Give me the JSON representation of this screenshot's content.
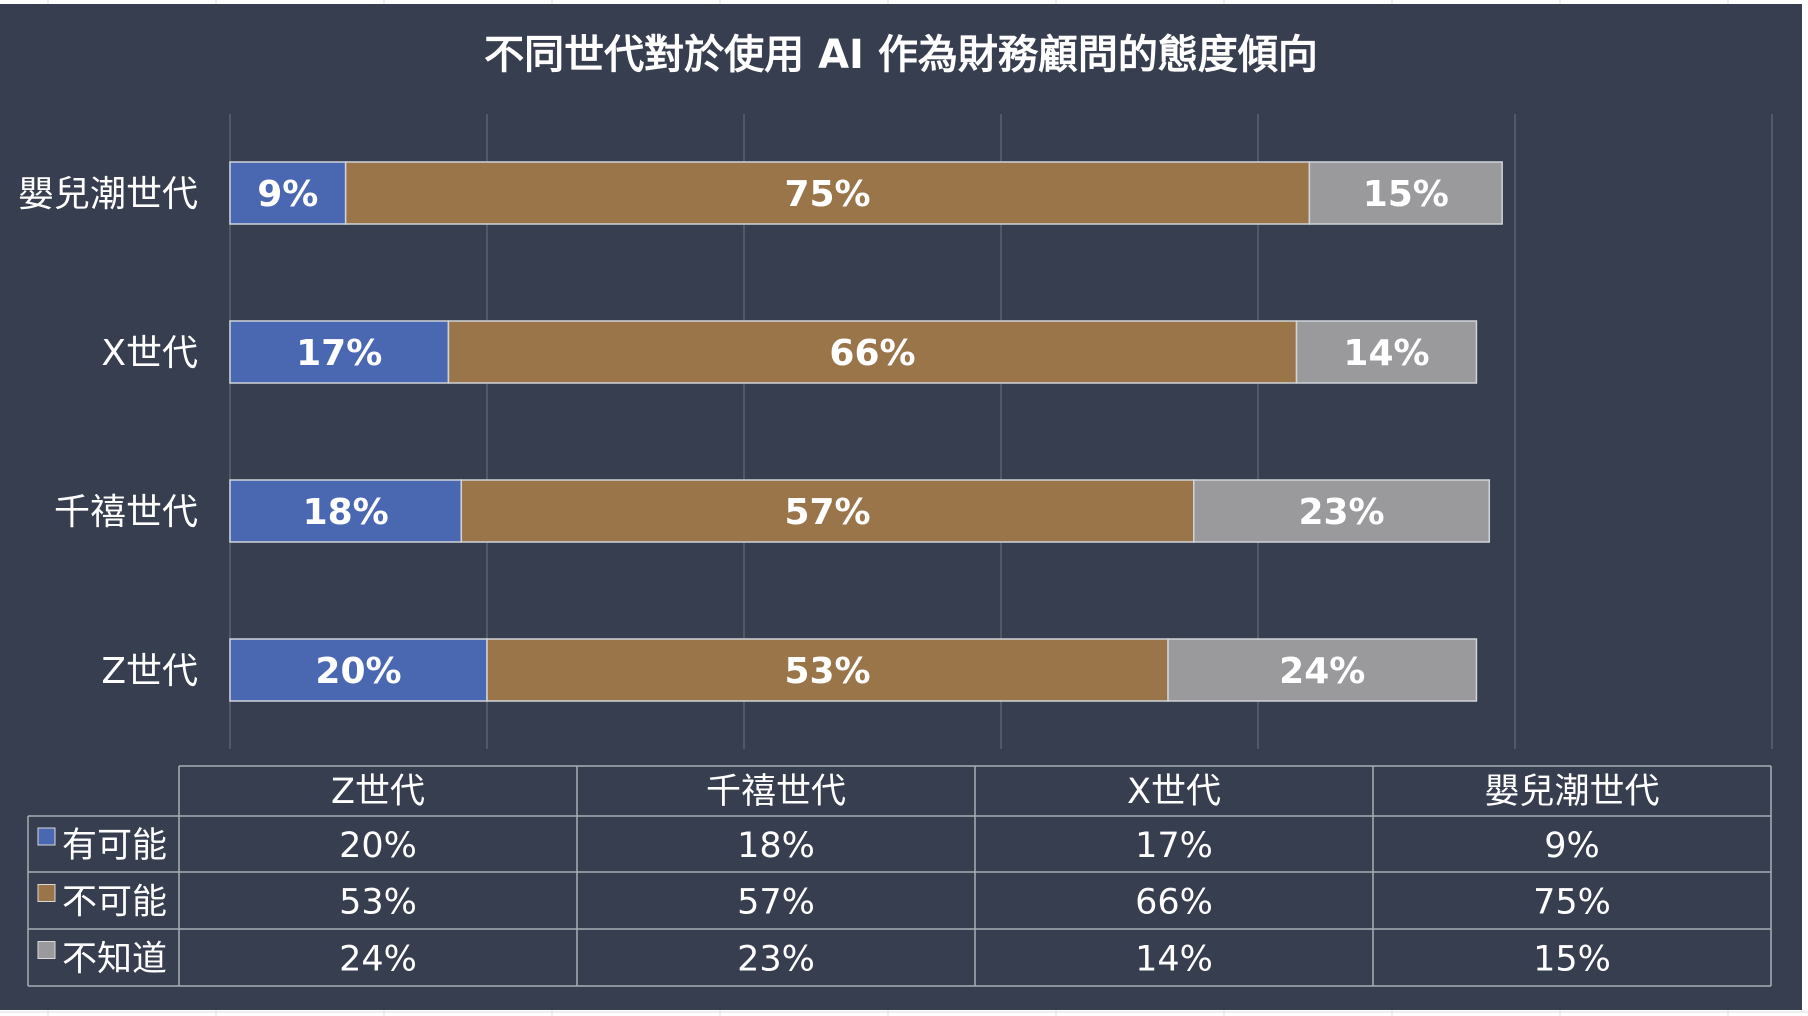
{
  "chart_data": {
    "type": "bar",
    "orientation": "horizontal",
    "stacked": true,
    "title": "不同世代對於使用 AI 作為財務顧問的態度傾向",
    "categories": [
      "嬰兒潮世代",
      "X世代",
      "千禧世代",
      "Z世代"
    ],
    "series": [
      {
        "name": "有可能",
        "color": "#4a67b2",
        "values": [
          9,
          17,
          18,
          20
        ]
      },
      {
        "name": "不可能",
        "color": "#9b754a",
        "values": [
          75,
          66,
          57,
          53
        ]
      },
      {
        "name": "不知道",
        "color": "#9a9a9d",
        "values": [
          15,
          14,
          23,
          24
        ]
      }
    ],
    "value_format": "{v}%",
    "xlim": [
      0,
      120
    ],
    "grid": true,
    "legend": "data-table-below",
    "data_table": {
      "columns": [
        "Z世代",
        "千禧世代",
        "X世代",
        "嬰兒潮世代"
      ],
      "rows": [
        {
          "label": "有可能",
          "color": "#4a67b2",
          "cells": [
            "20%",
            "18%",
            "17%",
            "9%"
          ]
        },
        {
          "label": "不可能",
          "color": "#9b754a",
          "cells": [
            "53%",
            "57%",
            "66%",
            "75%"
          ]
        },
        {
          "label": "不知道",
          "color": "#9a9a9d",
          "cells": [
            "24%",
            "23%",
            "14%",
            "15%"
          ]
        }
      ]
    }
  },
  "colors": {
    "background": "#363e4f",
    "text": "#ffffff",
    "gridline": "#5a6170",
    "bar_border": "#d0d3d8",
    "table_border": "#a9adb5"
  }
}
